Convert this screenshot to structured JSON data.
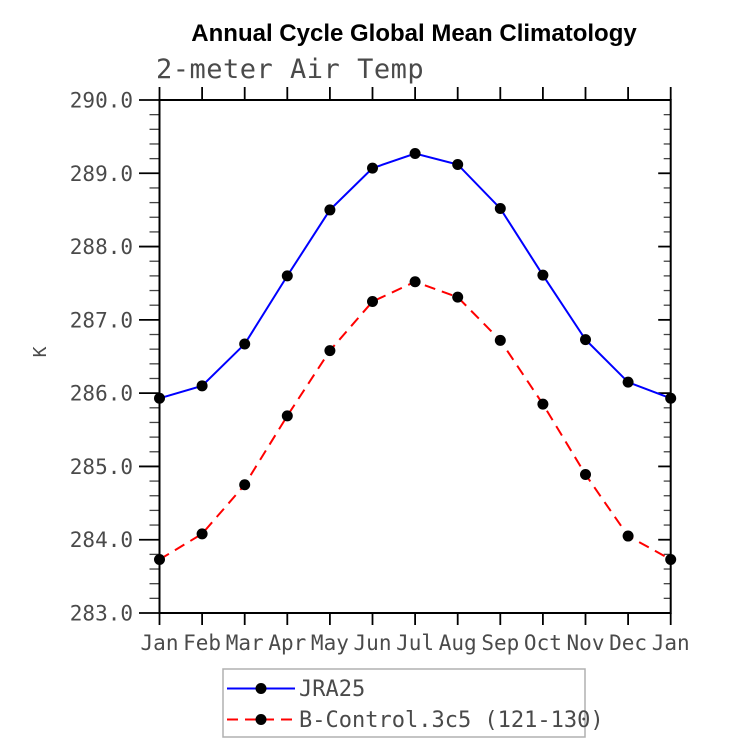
{
  "title": "Annual Cycle Global Mean Climatology",
  "subtitle": "2-meter Air Temp",
  "colors": {
    "series1": "#0000ff",
    "series2": "#ff0000",
    "marker": "#000000",
    "axis": "#000000",
    "minor_tick": "#444444",
    "text": "#4a4a4a",
    "legend_border": "#b0b0b0",
    "background": "#ffffff"
  },
  "chart_data": {
    "type": "line",
    "title": "Annual Cycle Global Mean Climatology",
    "subtitle": "2-meter Air Temp",
    "xlabel": "",
    "ylabel": "K",
    "ylim": [
      283.0,
      290.0
    ],
    "ytick_interval": 1.0,
    "minor_ytick_interval": 0.2,
    "grid": false,
    "legend_position": "bottom",
    "categories": [
      "Jan",
      "Feb",
      "Mar",
      "Apr",
      "May",
      "Jun",
      "Jul",
      "Aug",
      "Sep",
      "Oct",
      "Nov",
      "Dec",
      "Jan"
    ],
    "yticks": [
      "283.0",
      "284.0",
      "285.0",
      "286.0",
      "287.0",
      "288.0",
      "289.0",
      "290.0"
    ],
    "series": [
      {
        "name": "JRA25",
        "color": "#0000ff",
        "style": "solid",
        "marker": "circle",
        "values": [
          285.93,
          286.1,
          286.67,
          287.6,
          288.5,
          289.07,
          289.27,
          289.12,
          288.52,
          287.61,
          286.73,
          286.15,
          285.93
        ]
      },
      {
        "name": "B-Control.3c5 (121-130)",
        "color": "#ff0000",
        "style": "dashed",
        "marker": "circle",
        "values": [
          283.73,
          284.08,
          284.75,
          285.69,
          286.58,
          287.25,
          287.52,
          287.31,
          286.72,
          285.85,
          284.89,
          284.05,
          283.73
        ]
      }
    ]
  }
}
